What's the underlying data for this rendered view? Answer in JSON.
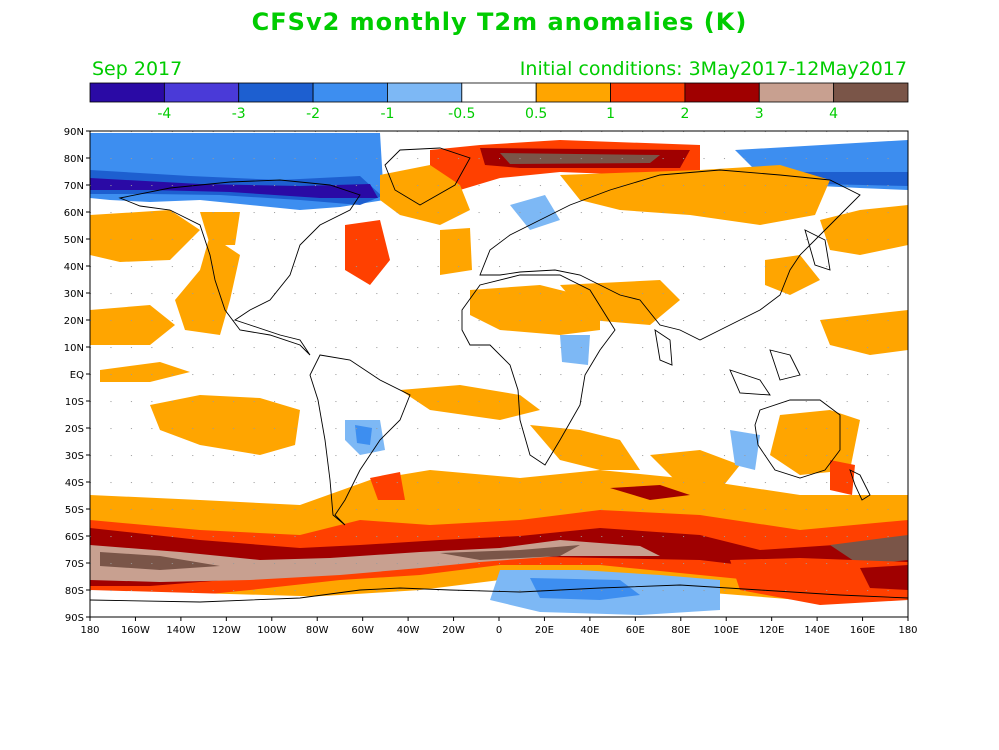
{
  "title": "CFSv2 monthly T2m anomalies (K)",
  "valid_month": "Sep 2017",
  "initial_conditions": "Initial conditions: 3May2017-12May2017",
  "colorbar": {
    "colors": [
      "#2a0aa5",
      "#4a3ad8",
      "#1d5fd0",
      "#3d8ef0",
      "#7db8f5",
      "#ffffff",
      "#ffa500",
      "#ff4000",
      "#a00000",
      "#c8a090",
      "#7a5548"
    ],
    "labels": [
      "-4",
      "-3",
      "-2",
      "-1",
      "-0.5",
      "0.5",
      "1",
      "2",
      "3",
      "4"
    ]
  },
  "axes": {
    "lat_labels": [
      "90N",
      "80N",
      "70N",
      "60N",
      "50N",
      "40N",
      "30N",
      "20N",
      "10N",
      "EQ",
      "10S",
      "20S",
      "30S",
      "40S",
      "50S",
      "60S",
      "70S",
      "80S",
      "90S"
    ],
    "lon_labels": [
      "180",
      "160W",
      "140W",
      "120W",
      "100W",
      "80W",
      "60W",
      "40W",
      "20W",
      "0",
      "20E",
      "40E",
      "60E",
      "80E",
      "100E",
      "120E",
      "140E",
      "160E",
      "180"
    ]
  }
}
